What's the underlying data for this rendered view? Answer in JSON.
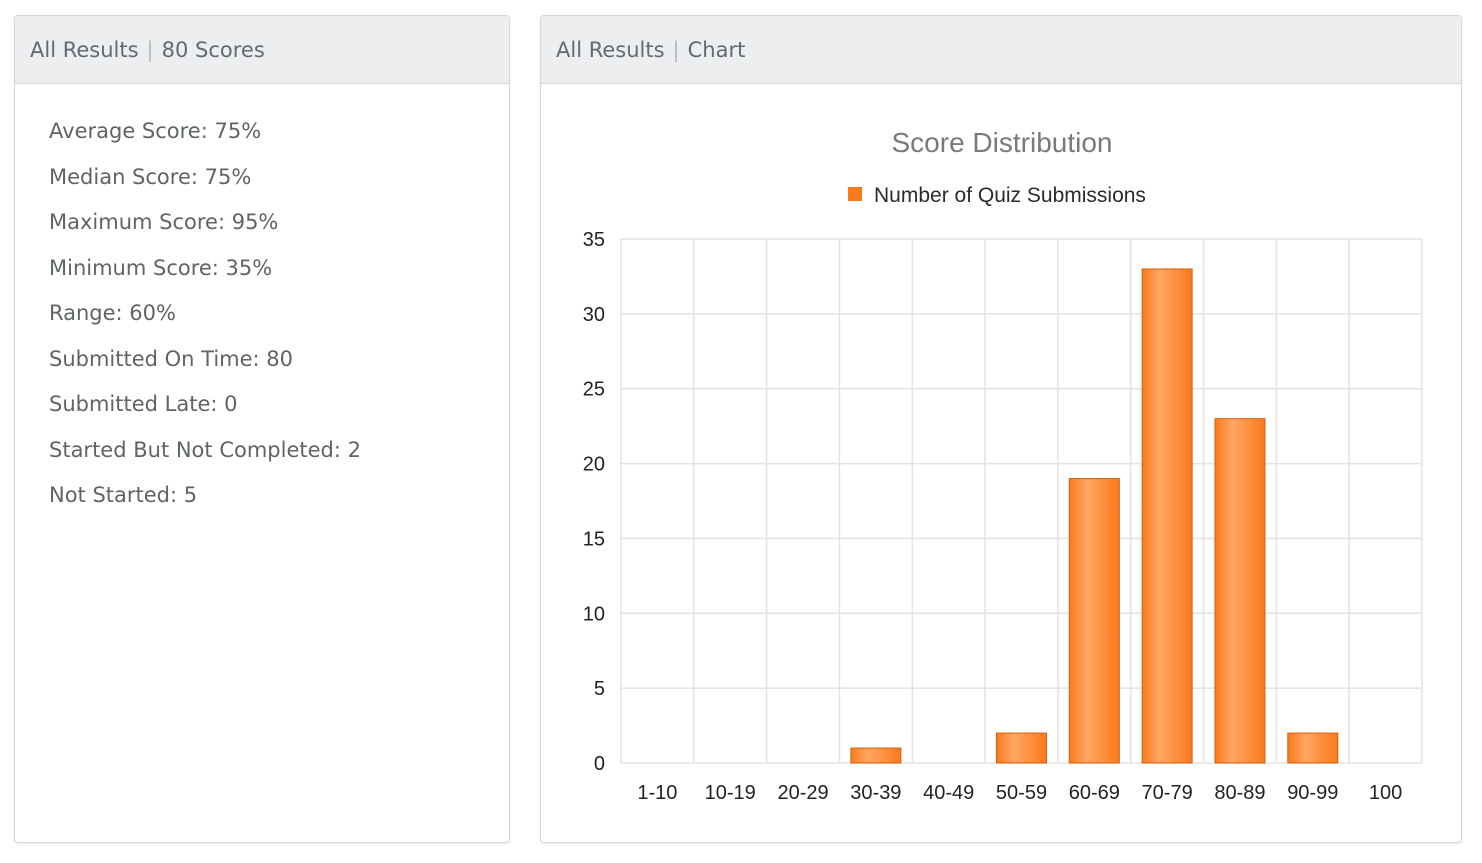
{
  "stats_panel": {
    "title_left": "All Results",
    "title_right": "80 Scores",
    "items": [
      {
        "label": "Average Score: 75%"
      },
      {
        "label": "Median Score: 75%"
      },
      {
        "label": "Maximum Score: 95%"
      },
      {
        "label": "Minimum Score: 35%"
      },
      {
        "label": "Range: 60%"
      },
      {
        "label": "Submitted On Time: 80"
      },
      {
        "label": "Submitted Late: 0"
      },
      {
        "label": "Started But Not Completed: 2"
      },
      {
        "label": "Not Started: 5"
      }
    ]
  },
  "chart_panel": {
    "title_left": "All Results",
    "title_right": "Chart"
  },
  "colors": {
    "bar": "#f97a1d",
    "bar_highlight": "#ffa662",
    "grid": "#e3e3e3",
    "header_bg": "#eceef0"
  },
  "chart_data": {
    "type": "bar",
    "title": "Score Distribution",
    "legend_position": "top-center",
    "grid": true,
    "categories": [
      "1-10",
      "10-19",
      "20-29",
      "30-39",
      "40-49",
      "50-59",
      "60-69",
      "70-79",
      "80-89",
      "90-99",
      "100"
    ],
    "series": [
      {
        "name": "Number of Quiz Submissions",
        "values": [
          0,
          0,
          0,
          1,
          0,
          2,
          19,
          33,
          23,
          2,
          0
        ]
      }
    ],
    "ylim": [
      0,
      35
    ],
    "yticks": [
      0,
      5,
      10,
      15,
      20,
      25,
      30,
      35
    ]
  }
}
